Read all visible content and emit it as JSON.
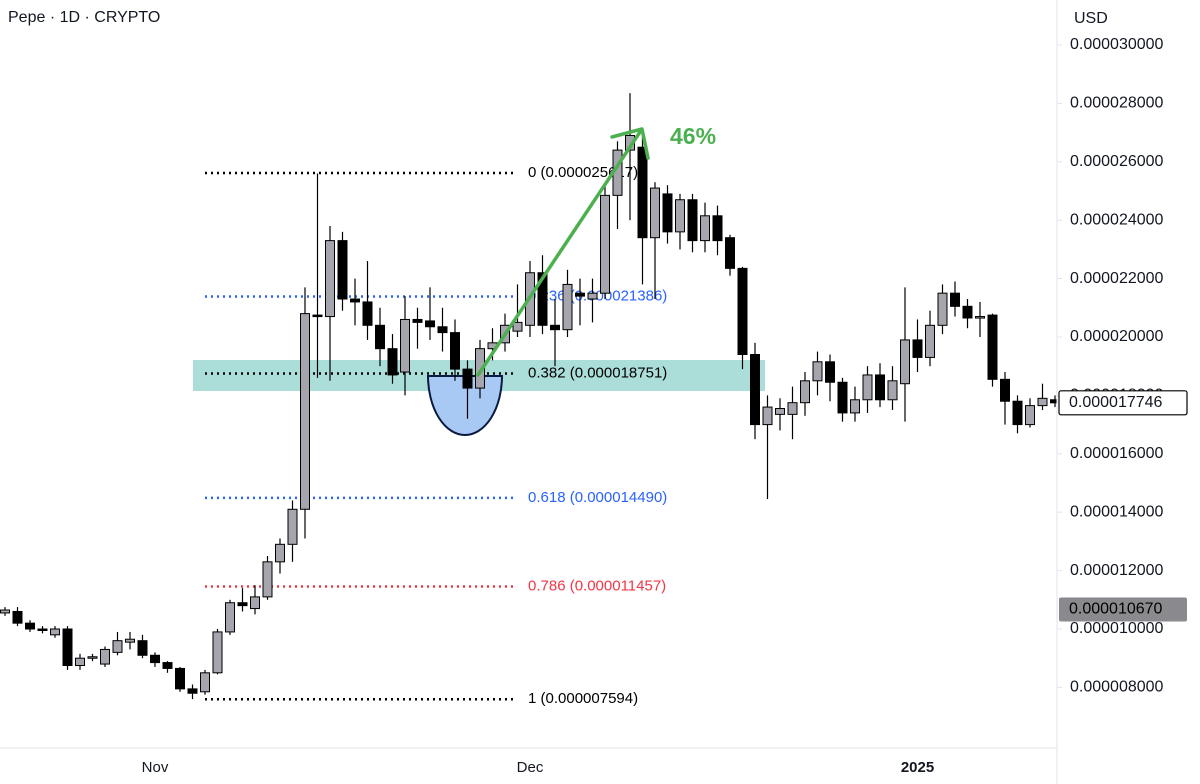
{
  "chart_data": {
    "type": "candlestick",
    "title": "Pepe · 1D · CRYPTO",
    "currency": "USD",
    "categories": [
      null,
      null,
      null,
      null,
      null,
      null,
      null,
      null,
      null,
      null,
      null,
      null,
      "Nov",
      null,
      null,
      null,
      null,
      null,
      null,
      null,
      null,
      null,
      null,
      null,
      null,
      null,
      null,
      null,
      null,
      null,
      null,
      null,
      null,
      null,
      null,
      null,
      null,
      null,
      null,
      null,
      null,
      null,
      "Dec",
      null,
      null,
      null,
      null,
      null,
      null,
      null,
      null,
      null,
      null,
      null,
      null,
      null,
      null,
      null,
      null,
      null,
      null,
      null,
      null,
      null,
      null,
      null,
      null,
      null,
      null,
      null,
      null,
      null,
      null,
      "2025",
      null,
      null,
      null,
      null,
      null,
      null,
      null,
      null,
      null,
      null,
      null
    ],
    "open": [
      1.055e-05,
      1.06e-05,
      1.02e-05,
      1e-05,
      9.8e-06,
      1e-05,
      8.75e-06,
      9e-06,
      8.8e-06,
      9.2e-06,
      9.55e-06,
      9.6e-06,
      9.1e-06,
      8.85e-06,
      8.65e-06,
      7.95e-06,
      7.85e-06,
      8.5e-06,
      9.9e-06,
      1.09e-05,
      1.07e-05,
      1.11e-05,
      1.23e-05,
      1.29e-05,
      1.41e-05,
      2.075e-05,
      2.07e-05,
      2.33e-05,
      2.13e-05,
      2.12e-05,
      2.04e-05,
      1.96e-05,
      1.88e-05,
      2.06e-05,
      2.055e-05,
      2.035e-05,
      2.015e-05,
      1.89e-05,
      1.825e-05,
      1.96e-05,
      1.98e-05,
      2.02e-05,
      2.04e-05,
      2.22e-05,
      2.04e-05,
      2.025e-05,
      2.15e-05,
      2.13e-05,
      2.15e-05,
      2.485e-05,
      2.64e-05,
      2.65e-05,
      2.34e-05,
      2.49e-05,
      2.36e-05,
      2.47e-05,
      2.33e-05,
      2.415e-05,
      2.34e-05,
      2.235e-05,
      1.94e-05,
      1.7e-05,
      1.735e-05,
      1.735e-05,
      1.775e-05,
      1.85e-05,
      1.915e-05,
      1.845e-05,
      1.74e-05,
      1.785e-05,
      1.87e-05,
      1.785e-05,
      1.84e-05,
      1.99e-05,
      1.93e-05,
      2.04e-05,
      2.15e-05,
      2.105e-05,
      2.065e-05,
      2.075e-05,
      1.855e-05,
      1.78e-05,
      1.7e-05,
      1.765e-05,
      1.785e-05
    ],
    "high": [
      1.075e-05,
      1.075e-05,
      1.03e-05,
      1.01e-05,
      1.01e-05,
      1.01e-05,
      9.15e-06,
      9.15e-06,
      9.4e-06,
      9.9e-06,
      9.9e-06,
      9.8e-06,
      9.2e-06,
      8.9e-06,
      8.7e-06,
      8.1e-06,
      8.6e-06,
      1e-05,
      1.1e-05,
      1.14e-05,
      1.15e-05,
      1.25e-05,
      1.31e-05,
      1.44e-05,
      2.17e-05,
      2.56e-05,
      2.38e-05,
      2.36e-05,
      2.2e-05,
      2.26e-05,
      2.1e-05,
      2.01e-05,
      2.14e-05,
      2.1e-05,
      2.17e-05,
      2.1e-05,
      2.06e-05,
      1.92e-05,
      1.99e-05,
      2.03e-05,
      2.08e-05,
      2.18e-05,
      2.26e-05,
      2.28e-05,
      2.13e-05,
      2.23e-05,
      2.2e-05,
      2.2e-05,
      2.52e-05,
      2.67e-05,
      2.835e-05,
      2.69e-05,
      2.53e-05,
      2.52e-05,
      2.49e-05,
      2.49e-05,
      2.46e-05,
      2.45e-05,
      2.35e-05,
      2.24e-05,
      1.98e-05,
      1.8e-05,
      1.79e-05,
      1.83e-05,
      1.88e-05,
      1.95e-05,
      1.94e-05,
      1.86e-05,
      1.83e-05,
      1.9e-05,
      1.91e-05,
      1.9e-05,
      2.17e-05,
      2.06e-05,
      2.09e-05,
      2.18e-05,
      2.19e-05,
      2.13e-05,
      2.12e-05,
      2.08e-05,
      1.88e-05,
      1.8e-05,
      1.79e-05,
      1.84e-05,
      1.8e-05
    ],
    "low": [
      1.045e-05,
      1.01e-05,
      9.9e-06,
      9.85e-06,
      9.7e-06,
      8.6e-06,
      8.6e-06,
      8.9e-06,
      8.7e-06,
      9.1e-06,
      9.3e-06,
      9e-06,
      8.7e-06,
      8.5e-06,
      7.85e-06,
      7.6e-06,
      7.75e-06,
      8.45e-06,
      9.8e-06,
      1.06e-05,
      1.05e-05,
      1.1e-05,
      1.19e-05,
      1.23e-05,
      1.31e-05,
      1.86e-05,
      1.85e-05,
      2.09e-05,
      2.04e-05,
      1.99e-05,
      1.9e-05,
      1.84e-05,
      1.8e-05,
      1.96e-05,
      1.99e-05,
      1.95e-05,
      1.85e-05,
      1.72e-05,
      1.79e-05,
      1.92e-05,
      1.95e-05,
      2e-05,
      2e-05,
      2.01e-05,
      1.9e-05,
      2e-05,
      2.04e-05,
      2.05e-05,
      2.13e-05,
      2.37e-05,
      2.4e-05,
      2.18e-05,
      2.13e-05,
      2.32e-05,
      2.3e-05,
      2.29e-05,
      2.29e-05,
      2.28e-05,
      2.21e-05,
      1.89e-05,
      1.65e-05,
      1.445e-05,
      1.68e-05,
      1.65e-05,
      1.73e-05,
      1.8e-05,
      1.78e-05,
      1.71e-05,
      1.71e-05,
      1.74e-05,
      1.76e-05,
      1.75e-05,
      1.71e-05,
      1.88e-05,
      1.9e-05,
      2.01e-05,
      2.07e-05,
      2.03e-05,
      2e-05,
      1.83e-05,
      1.7e-05,
      1.67e-05,
      1.69e-05,
      1.75e-05,
      1.76e-05
    ],
    "close": [
      1.065e-05,
      1.02e-05,
      1e-05,
      9.95e-06,
      1e-05,
      8.75e-06,
      9e-06,
      9.05e-06,
      9.3e-06,
      9.6e-06,
      9.65e-06,
      9.1e-06,
      8.85e-06,
      8.65e-06,
      7.95e-06,
      7.8e-06,
      8.5e-06,
      9.9e-06,
      1.09e-05,
      1.08e-05,
      1.11e-05,
      1.23e-05,
      1.29e-05,
      1.41e-05,
      2.08e-05,
      2.07e-05,
      2.33e-05,
      2.13e-05,
      2.12e-05,
      2.04e-05,
      1.96e-05,
      1.87e-05,
      2.06e-05,
      2.05e-05,
      2.035e-05,
      2.015e-05,
      1.89e-05,
      1.825e-05,
      1.96e-05,
      1.98e-05,
      2.04e-05,
      2.05e-05,
      2.22e-05,
      2.04e-05,
      2.025e-05,
      2.18e-05,
      2.14e-05,
      2.15e-05,
      2.485e-05,
      2.64e-05,
      2.69e-05,
      2.34e-05,
      2.51e-05,
      2.36e-05,
      2.47e-05,
      2.33e-05,
      2.415e-05,
      2.33e-05,
      2.235e-05,
      1.94e-05,
      1.7e-05,
      1.76e-05,
      1.755e-05,
      1.775e-05,
      1.85e-05,
      1.915e-05,
      1.845e-05,
      1.74e-05,
      1.785e-05,
      1.87e-05,
      1.785e-05,
      1.85e-05,
      1.99e-05,
      1.93e-05,
      2.04e-05,
      2.15e-05,
      2.105e-05,
      2.065e-05,
      2.07e-05,
      1.855e-05,
      1.78e-05,
      1.7e-05,
      1.765e-05,
      1.79e-05,
      1.7746e-05
    ],
    "up_color": "#a5a5ad",
    "down_color": "#000000",
    "ylim": [
      5.925e-06,
      3.154e-05
    ],
    "yticks": [
      {
        "value": 8e-06,
        "label": "0.000008000"
      },
      {
        "value": 1e-05,
        "label": "0.000010000"
      },
      {
        "value": 1.2e-05,
        "label": "0.000012000"
      },
      {
        "value": 1.4e-05,
        "label": "0.000014000"
      },
      {
        "value": 1.6e-05,
        "label": "0.000016000"
      },
      {
        "value": 1.8e-05,
        "label": "0.000018000"
      },
      {
        "value": 2e-05,
        "label": "0.000020000"
      },
      {
        "value": 2.2e-05,
        "label": "0.000022000"
      },
      {
        "value": 2.4e-05,
        "label": "0.000024000"
      },
      {
        "value": 2.6e-05,
        "label": "0.000026000"
      },
      {
        "value": 2.8e-05,
        "label": "0.000028000"
      },
      {
        "value": 3e-05,
        "label": "0.000030000"
      }
    ],
    "fib_levels": [
      {
        "value": 2.5617e-05,
        "label": "0 (0.000025617)",
        "color": "#000000"
      },
      {
        "value": 2.1386e-05,
        "label": "0.236 (0.000021386)",
        "color": "#2962ff"
      },
      {
        "value": 1.8751e-05,
        "label": "0.382 (0.000018751)",
        "color": "#000000"
      },
      {
        "value": 1.449e-05,
        "label": "0.618 (0.000014490)",
        "color": "#2962ff"
      },
      {
        "value": 1.1457e-05,
        "label": "0.786 (0.000011457)",
        "color": "#f23645"
      },
      {
        "value": 7.594e-06,
        "label": "1 (0.000007594)",
        "color": "#000000"
      }
    ],
    "price_labels": [
      {
        "value": 1.7746e-05,
        "label": "0.000017746",
        "style": "current"
      },
      {
        "value": 1.067e-05,
        "label": "0.000010670",
        "style": "marker"
      }
    ],
    "annotation": "46%"
  }
}
